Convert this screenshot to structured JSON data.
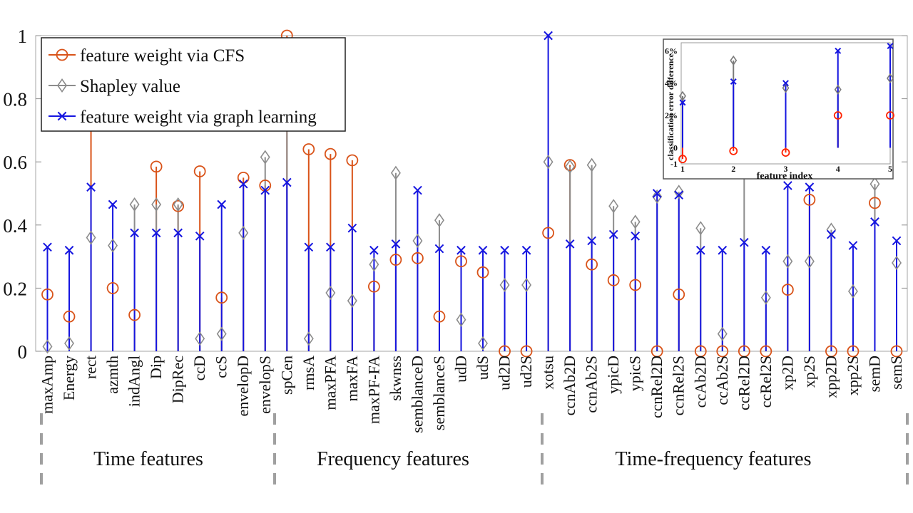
{
  "chart_data": [
    {
      "type": "stem",
      "ylim": [
        0,
        1
      ],
      "yticks": [
        "0",
        "0.2",
        "0.4",
        "0.6",
        "0.8",
        "1"
      ],
      "categories": [
        "maxAmp",
        "Energy",
        "rect",
        "azmth",
        "indAngl",
        "Dip",
        "DipRec",
        "ccD",
        "ccS",
        "envelopD",
        "envelopS",
        "spCen",
        "rmsA",
        "maxPFA",
        "maxFA",
        "maxPF-FA",
        "skwnss",
        "semblanceD",
        "semblanceS",
        "udD",
        "udS",
        "ud2D",
        "ud2S",
        "xotsu",
        "ccnAb2D",
        "ccnAb2S",
        "ypicD",
        "ypicS",
        "ccnRel2D",
        "ccnRel2S",
        "ccAb2D",
        "ccAb2S",
        "ccRel2D",
        "ccRel2S",
        "xp2D",
        "xp2S",
        "xpp2D",
        "xpp2S",
        "semD",
        "semS"
      ],
      "groups": [
        {
          "label": "Time features",
          "start": 0,
          "end": 10
        },
        {
          "label": "Frequency features",
          "start": 11,
          "end": 22
        },
        {
          "label": "Time-frequency features",
          "start": 23,
          "end": 39
        }
      ],
      "series": [
        {
          "name": "feature weight via CFS",
          "marker": "circle",
          "color": "#d95319",
          "values": [
            0.18,
            0.11,
            0.76,
            0.2,
            0.115,
            0.585,
            0.46,
            0.57,
            0.17,
            0.55,
            0.525,
            1.0,
            0.64,
            0.625,
            0.605,
            0.205,
            0.29,
            0.295,
            0.11,
            0.285,
            0.25,
            0.0,
            0.0,
            0.375,
            0.59,
            0.275,
            0.225,
            0.21,
            0.0,
            0.18,
            0.0,
            0.0,
            0.0,
            0.0,
            0.195,
            0.48,
            0.0,
            0.0,
            0.47,
            0.0
          ]
        },
        {
          "name": "Shapley value",
          "marker": "diamond",
          "color": "#8c8c8c",
          "values": [
            0.015,
            0.025,
            0.36,
            0.335,
            0.465,
            0.465,
            0.465,
            0.04,
            0.055,
            0.375,
            0.615,
            0.75,
            0.04,
            0.185,
            0.16,
            0.275,
            0.565,
            0.35,
            0.415,
            0.1,
            0.025,
            0.21,
            0.21,
            0.6,
            0.585,
            0.59,
            0.46,
            0.41,
            0.49,
            0.505,
            0.39,
            0.055,
            0.68,
            0.17,
            0.285,
            0.285,
            0.385,
            0.19,
            0.53,
            0.28
          ]
        },
        {
          "name": "feature weight via graph learning",
          "marker": "x",
          "color": "#1515e0",
          "values": [
            0.33,
            0.32,
            0.52,
            0.465,
            0.375,
            0.375,
            0.375,
            0.365,
            0.465,
            0.53,
            0.51,
            0.535,
            0.33,
            0.33,
            0.39,
            0.32,
            0.34,
            0.51,
            0.325,
            0.32,
            0.32,
            0.32,
            0.32,
            1.0,
            0.34,
            0.35,
            0.37,
            0.365,
            0.5,
            0.495,
            0.32,
            0.32,
            0.345,
            0.32,
            0.525,
            0.52,
            0.37,
            0.335,
            0.41,
            0.35
          ]
        }
      ]
    },
    {
      "type": "stem",
      "xlabel": "feature index",
      "ylabel": "classification error difference",
      "xticks": [
        "1",
        "2",
        "3",
        "4",
        "5"
      ],
      "yticks": [
        "-1",
        "0",
        "2%",
        "4%",
        "6%"
      ],
      "ylim": [
        -1,
        6.5
      ],
      "series": [
        {
          "marker": "circle",
          "color": "#ff2200",
          "values": [
            -0.7,
            -0.2,
            -0.3,
            2.0,
            2.0
          ]
        },
        {
          "marker": "diamond",
          "color": "#7a7a7a",
          "values": [
            3.2,
            5.4,
            3.7,
            3.6,
            4.3
          ]
        },
        {
          "marker": "x",
          "color": "#1515e0",
          "values": [
            2.8,
            4.1,
            4.0,
            6.0,
            6.3
          ]
        }
      ]
    }
  ]
}
